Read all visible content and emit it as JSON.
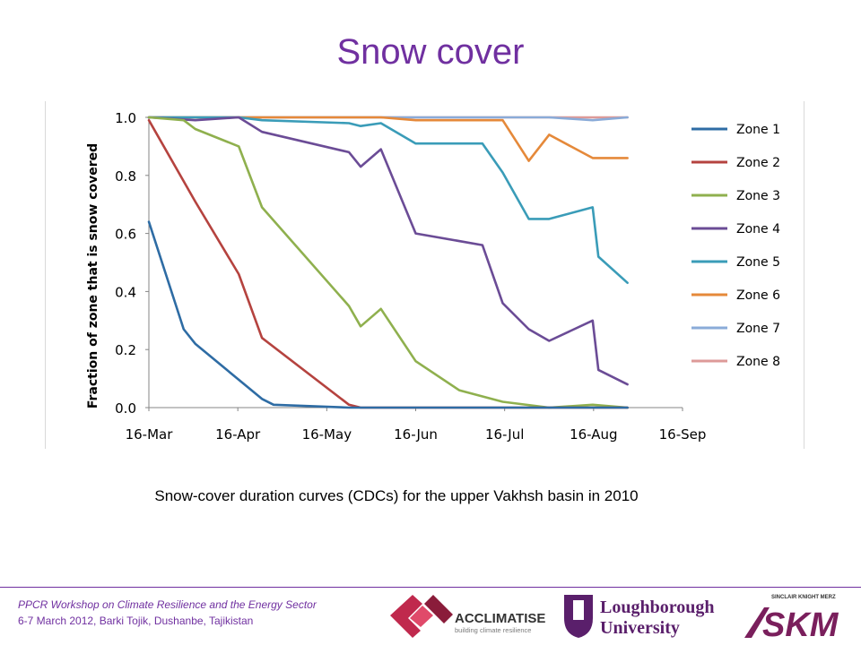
{
  "title": "Snow cover",
  "caption": "Snow-cover duration curves (CDCs) for the upper Vakhsh basin in 2010",
  "footer": {
    "line1": "PPCR Workshop on Climate Resilience and the Energy Sector",
    "line2": "6-7 March 2012, Barki Tojik, Dushanbe, Tajikistan"
  },
  "logos": {
    "acclimatise": {
      "name": "ACCLIMATISE",
      "tagline": "building climate resilience"
    },
    "loughborough": {
      "line1": "Loughborough",
      "line2": "University"
    },
    "skm": {
      "top": "SINCLAIR KNIGHT MERZ",
      "name": "SKM"
    }
  },
  "colors": {
    "title": "#7030a0",
    "footer": "#7030a0",
    "acclimatise": "#c0294d",
    "loughborough": "#5a1f6b",
    "skm": "#7a1f5c"
  },
  "chart_data": {
    "type": "line",
    "ylabel": "Fraction of zone that is snow covered",
    "xlabel": "",
    "x_ticks": [
      "16-Mar",
      "16-Apr",
      "16-May",
      "16-Jun",
      "16-Jul",
      "16-Aug",
      "16-Sep"
    ],
    "x_axis": "dates 2010, 16-Mar to 16-Sep",
    "y_ticks": [
      "0.0",
      "0.2",
      "0.4",
      "0.6",
      "0.8",
      "1.0"
    ],
    "ylim": [
      0,
      1
    ],
    "grid": false,
    "legend_position": "right",
    "series": [
      {
        "name": "Zone 1",
        "color": "#2e6ca4",
        "x": [
          "2010-03-16",
          "2010-03-28",
          "2010-04-01",
          "2010-04-24",
          "2010-04-28",
          "2010-05-24",
          "2010-05-28",
          "2010-06-16",
          "2010-08-16",
          "2010-08-28"
        ],
        "values": [
          0.64,
          0.27,
          0.22,
          0.03,
          0.01,
          0.0,
          0.0,
          0.0,
          0.0,
          0.0
        ]
      },
      {
        "name": "Zone 2",
        "color": "#b5433f",
        "x": [
          "2010-03-16",
          "2010-04-01",
          "2010-04-16",
          "2010-04-24",
          "2010-05-24",
          "2010-05-28",
          "2010-06-16",
          "2010-08-16",
          "2010-08-28"
        ],
        "values": [
          0.99,
          0.71,
          0.46,
          0.24,
          0.01,
          0.0,
          0.0,
          0.0,
          0.0
        ]
      },
      {
        "name": "Zone 3",
        "color": "#8fb04e",
        "x": [
          "2010-03-16",
          "2010-03-28",
          "2010-04-01",
          "2010-04-16",
          "2010-04-24",
          "2010-05-24",
          "2010-05-28",
          "2010-06-04",
          "2010-06-16",
          "2010-07-01",
          "2010-07-16",
          "2010-08-01",
          "2010-08-16",
          "2010-08-28"
        ],
        "values": [
          1.0,
          0.99,
          0.96,
          0.9,
          0.69,
          0.35,
          0.28,
          0.34,
          0.16,
          0.06,
          0.02,
          0.0,
          0.01,
          0.0
        ]
      },
      {
        "name": "Zone 4",
        "color": "#6b4c96",
        "x": [
          "2010-03-16",
          "2010-04-01",
          "2010-04-16",
          "2010-04-24",
          "2010-05-24",
          "2010-05-28",
          "2010-06-04",
          "2010-06-16",
          "2010-07-09",
          "2010-07-16",
          "2010-07-25",
          "2010-08-01",
          "2010-08-16",
          "2010-08-18",
          "2010-08-28"
        ],
        "values": [
          1.0,
          0.99,
          1.0,
          0.95,
          0.88,
          0.83,
          0.89,
          0.6,
          0.56,
          0.36,
          0.27,
          0.23,
          0.3,
          0.13,
          0.08
        ]
      },
      {
        "name": "Zone 5",
        "color": "#3a9cb8",
        "x": [
          "2010-03-16",
          "2010-04-16",
          "2010-04-24",
          "2010-05-24",
          "2010-05-28",
          "2010-06-04",
          "2010-06-16",
          "2010-07-09",
          "2010-07-16",
          "2010-07-25",
          "2010-08-01",
          "2010-08-16",
          "2010-08-18",
          "2010-08-28"
        ],
        "values": [
          1.0,
          1.0,
          0.99,
          0.98,
          0.97,
          0.98,
          0.91,
          0.91,
          0.81,
          0.65,
          0.65,
          0.69,
          0.52,
          0.43
        ]
      },
      {
        "name": "Zone 6",
        "color": "#e5893a",
        "x": [
          "2010-03-16",
          "2010-06-04",
          "2010-06-16",
          "2010-07-16",
          "2010-07-25",
          "2010-08-01",
          "2010-08-16",
          "2010-08-28"
        ],
        "values": [
          1.0,
          1.0,
          0.99,
          0.99,
          0.85,
          0.94,
          0.86,
          0.86
        ]
      },
      {
        "name": "Zone 7",
        "color": "#8aabd8",
        "x": [
          "2010-03-16",
          "2010-08-01",
          "2010-08-16",
          "2010-08-28"
        ],
        "values": [
          1.0,
          1.0,
          0.99,
          1.0
        ]
      },
      {
        "name": "Zone 8",
        "color": "#dd9a98",
        "x": [
          "2010-03-16",
          "2010-08-28"
        ],
        "values": [
          1.0,
          1.0
        ]
      }
    ]
  }
}
